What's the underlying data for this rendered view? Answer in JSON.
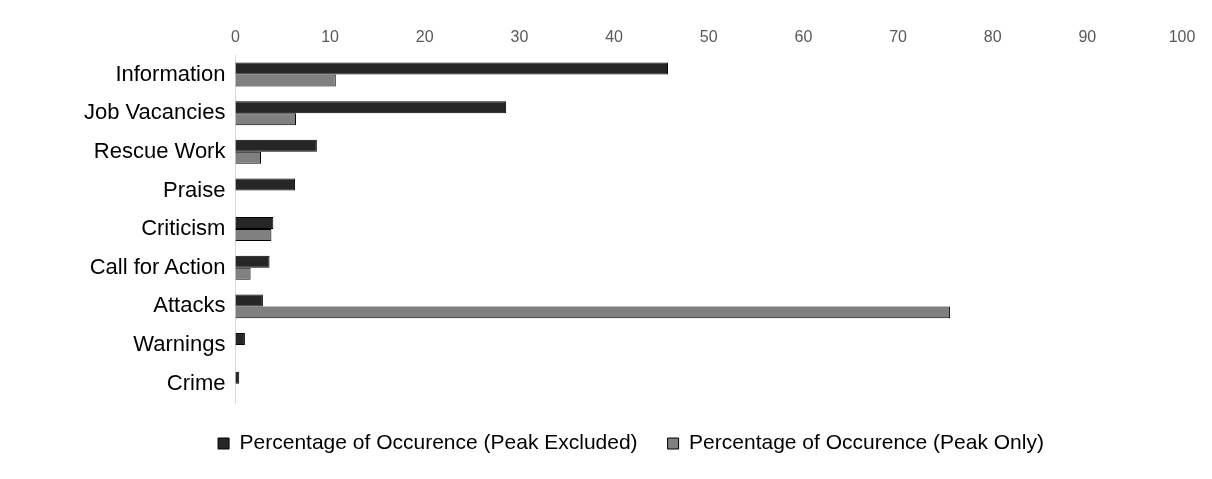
{
  "chart_data": {
    "type": "bar",
    "orientation": "horizontal",
    "categories": [
      "Information",
      "Job Vacancies",
      "Rescue Work",
      "Praise",
      "Criticism",
      "Call for Action",
      "Attacks",
      "Warnings",
      "Crime"
    ],
    "series": [
      {
        "name": "Percentage of Occurence (Peak Excluded)",
        "color": "#262626",
        "values": [
          45.7,
          28.6,
          8.6,
          6.3,
          4.0,
          3.6,
          2.9,
          1.0,
          0.4
        ]
      },
      {
        "name": "Percentage of Occurence (Peak Only)",
        "color": "#808080",
        "values": [
          10.6,
          6.4,
          2.7,
          null,
          3.8,
          1.6,
          75.5,
          null,
          null
        ]
      }
    ],
    "xlim": [
      0,
      100
    ],
    "xticks": [
      0,
      10,
      20,
      30,
      40,
      50,
      60,
      70,
      80,
      90,
      100
    ],
    "grid": false,
    "legend": "bottom"
  }
}
